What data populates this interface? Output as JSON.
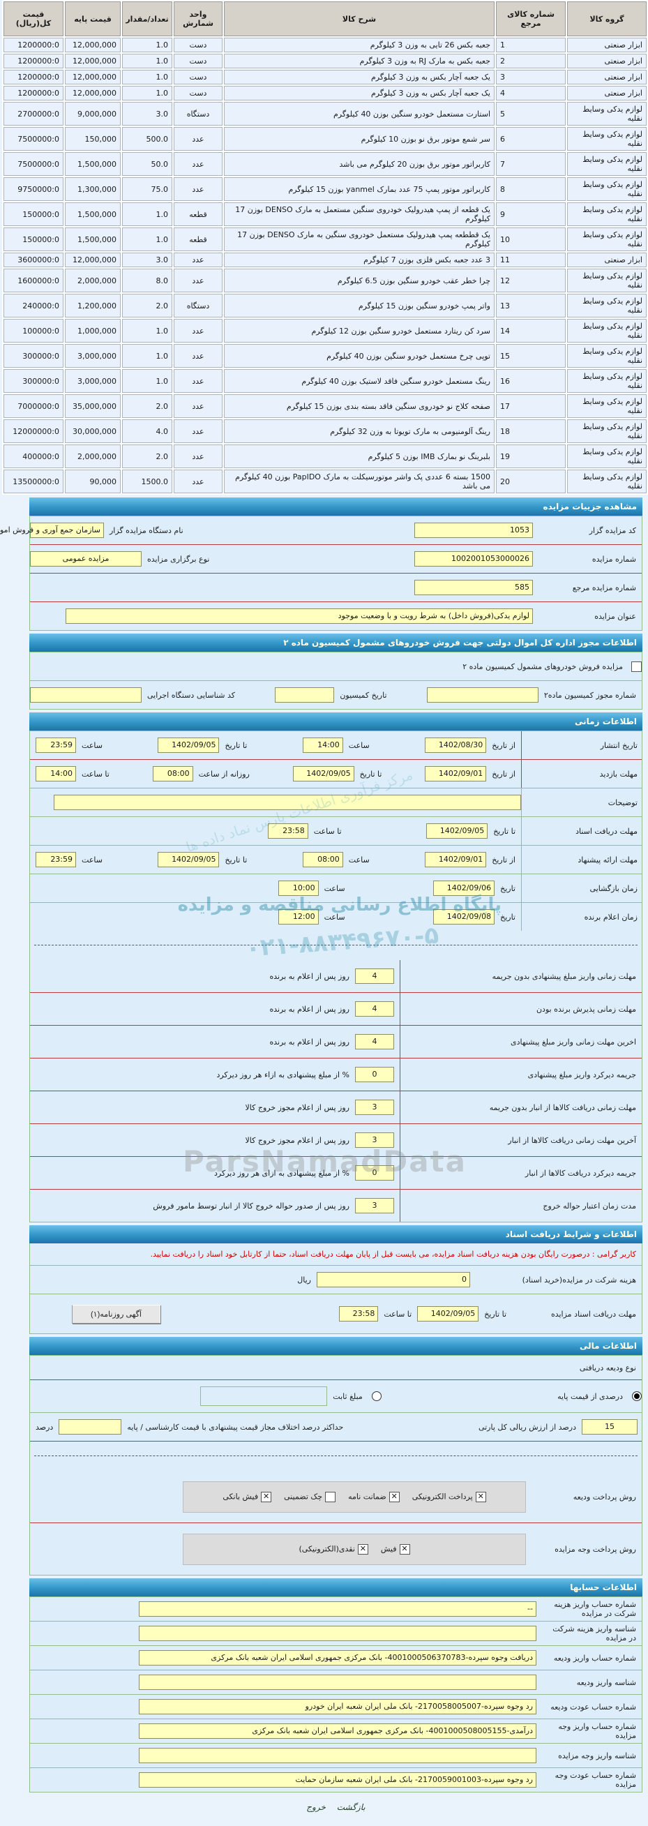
{
  "items_table": {
    "headers": [
      "گروه کالا",
      "شماره کالای مرجع",
      "شرح کالا",
      "واحد شمارش",
      "تعداد/مقدار",
      "قیمت پایه",
      "قیمت کل(ریال)"
    ],
    "rows": [
      {
        "group": "ابزار صنعتی",
        "ref": "1",
        "desc": "جعبه بکس 26 تایی به وزن 3 کیلوگرم",
        "unit": "دست",
        "qty": "1.0",
        "price": "12,000,000",
        "total": "1200000:0"
      },
      {
        "group": "ابزار صنعتی",
        "ref": "2",
        "desc": "جعبه بکس به مارک RJ به وزن 3 کیلوگرم",
        "unit": "دست",
        "qty": "1.0",
        "price": "12,000,000",
        "total": "1200000:0"
      },
      {
        "group": "ابزار صنعتی",
        "ref": "3",
        "desc": "یک جعبه آچار بکس به وزن 3 کیلوگرم",
        "unit": "دست",
        "qty": "1.0",
        "price": "12,000,000",
        "total": "1200000:0"
      },
      {
        "group": "ابزار صنعتی",
        "ref": "4",
        "desc": "یک جعبه آچار بکس به وزن 3 کیلوگرم",
        "unit": "دست",
        "qty": "1.0",
        "price": "12,000,000",
        "total": "1200000:0"
      },
      {
        "group": "لوازم یدکی وسایط نقلیه",
        "ref": "5",
        "desc": "استارت مستعمل خودرو سنگین بوزن 40 کیلوگرم",
        "unit": "دستگاه",
        "qty": "3.0",
        "price": "9,000,000",
        "total": "2700000:0"
      },
      {
        "group": "لوازم یدکی وسایط نقلیه",
        "ref": "6",
        "desc": "سر شمع موتور برق نو بوزن 10 کیلوگرم",
        "unit": "عدد",
        "qty": "500.0",
        "price": "150,000",
        "total": "7500000:0"
      },
      {
        "group": "لوازم یدکی وسایط نقلیه",
        "ref": "7",
        "desc": "کاربراتور موتور برق بوزن 20 کیلوگرم می باشد",
        "unit": "عدد",
        "qty": "50.0",
        "price": "1,500,000",
        "total": "7500000:0"
      },
      {
        "group": "لوازم یدکی وسایط نقلیه",
        "ref": "8",
        "desc": "کاربراتور موتور پمپ 75 عدد بمارک yanmel بوزن 15 کیلوگرم",
        "unit": "عدد",
        "qty": "75.0",
        "price": "1,300,000",
        "total": "9750000:0"
      },
      {
        "group": "لوازم یدکی وسایط نقلیه",
        "ref": "9",
        "desc": "یک قطعه از پمپ هیدرولیک خودروی سنگین مستعمل به مارک DENSO بوزن 17 کیلوگرم",
        "unit": "قطعه",
        "qty": "1.0",
        "price": "1,500,000",
        "total": "150000:0"
      },
      {
        "group": "لوازم یدکی وسایط نقلیه",
        "ref": "10",
        "desc": "یک قططعه پمپ هیدرولیک مستعمل خودروی سنگین به مارک DENSO بوزن 17 کیلوگرم",
        "unit": "قطعه",
        "qty": "1.0",
        "price": "1,500,000",
        "total": "150000:0"
      },
      {
        "group": "ابزار صنعتی",
        "ref": "11",
        "desc": "3 عدد جعبه بکس فلزی بوزن 7 کیلوگرم",
        "unit": "عدد",
        "qty": "3.0",
        "price": "12,000,000",
        "total": "3600000:0"
      },
      {
        "group": "لوازم یدکی وسایط نقلیه",
        "ref": "12",
        "desc": "چرا خطر عقب خودرو سنگین بوزن 6.5 کیلوگرم",
        "unit": "عدد",
        "qty": "8.0",
        "price": "2,000,000",
        "total": "1600000:0"
      },
      {
        "group": "لوازم یدکی وسایط نقلیه",
        "ref": "13",
        "desc": "واتر پمپ خودرو سنگین بوزن 15 کیلوگرم",
        "unit": "دستگاه",
        "qty": "2.0",
        "price": "1,200,000",
        "total": "240000:0"
      },
      {
        "group": "لوازم یدکی وسایط نقلیه",
        "ref": "14",
        "desc": "سرد کن ریتارد مستعمل خودرو سنگین بوزن 12 کیلوگرم",
        "unit": "عدد",
        "qty": "1.0",
        "price": "1,000,000",
        "total": "100000:0"
      },
      {
        "group": "لوازم یدکی وسایط نقلیه",
        "ref": "15",
        "desc": "توپی چرخ مستعمل خودرو سنگین بوزن 40 کیلوگرم",
        "unit": "عدد",
        "qty": "1.0",
        "price": "3,000,000",
        "total": "300000:0"
      },
      {
        "group": "لوازم یدکی وسایط نقلیه",
        "ref": "16",
        "desc": "رینگ مستعمل خودرو سنگین فاقد لاستیک بوزن 40 کیلوگرم",
        "unit": "عدد",
        "qty": "1.0",
        "price": "3,000,000",
        "total": "300000:0"
      },
      {
        "group": "لوازم یدکی وسایط نقلیه",
        "ref": "17",
        "desc": "صفحه کلاج نو خودروی سنگین فاقد بسته بندی بوزن 15 کیلوگرم",
        "unit": "عدد",
        "qty": "2.0",
        "price": "35,000,000",
        "total": "7000000:0"
      },
      {
        "group": "لوازم یدکی وسایط نقلیه",
        "ref": "18",
        "desc": "رینگ آلومنیومی به مارک تویوتا به وزن 32 کیلوگرم",
        "unit": "عدد",
        "qty": "4.0",
        "price": "30,000,000",
        "total": "12000000:0"
      },
      {
        "group": "لوازم یدکی وسایط نقلیه",
        "ref": "19",
        "desc": "بلبرینگ نو بمارک IMB بوزن 5 کیلوگرم",
        "unit": "عدد",
        "qty": "2.0",
        "price": "2,000,000",
        "total": "400000:0"
      },
      {
        "group": "لوازم یدکی وسایط نقلیه",
        "ref": "20",
        "desc": "1500 بسته 6 عددی پک واشر موتورسیکلت به مارک PapIDO بوزن 40 کیلوگرم می باشد",
        "unit": "عدد",
        "qty": "1500.0",
        "price": "90,000",
        "total": "13500000:0"
      }
    ]
  },
  "details": {
    "title": "مشاهده جزییات مزایده",
    "code_label": "کد مزایده گزار",
    "code_value": "1053",
    "org_label": "نام دستگاه مزایده گزار",
    "org_value": "سازمان جمع آوری و فروش امو",
    "number_label": "شماره مزایده",
    "number_value": "1002001053000026",
    "type_label": "نوع برگزاری مزایده",
    "type_value": "مزایده عمومی",
    "ref_label": "شماره مزایده مرجع",
    "ref_value": "585",
    "subject_label": "عنوان مزایده",
    "subject_value": "لوازم یدکی(فروش داخل) به شرط رویت و با وضعیت موجود"
  },
  "permit": {
    "title": "اطلاعات مجوز اداره کل اموال دولتی جهت فروش خودروهای مشمول کمیسیون ماده ۲",
    "checkbox_label": "مزایده فروش خودروهای مشمول کمیسیون ماده ۲",
    "checkbox_checked": false,
    "no_label": "شماره مجوز کمیسیون ماده۲",
    "date_label": "تاریخ کمیسیون",
    "org_code_label": "کد شناسایی دستگاه اجرایی"
  },
  "time": {
    "title": "اطلاعات زمانی",
    "publish_label": "تاریخ انتشار",
    "publish_from_label": "از تاریخ",
    "publish_from_date": "1402/08/30",
    "publish_from_time_label": "ساعت",
    "publish_from_time": "14:00",
    "publish_to_label": "تا تاریخ",
    "publish_to_date": "1402/09/05",
    "publish_to_time_label": "ساعت",
    "publish_to_time": "23:59",
    "visit_label": "مهلت بازدید",
    "visit_from_label": "از تاریخ",
    "visit_from_date": "1402/09/01",
    "visit_to_label": "تا تاریخ",
    "visit_to_date": "1402/09/05",
    "visit_daily_label": "روزانه از ساعت",
    "visit_daily_from": "08:00",
    "visit_daily_to_label": "تا ساعت",
    "visit_daily_to": "14:00",
    "notes_label": "توضیحات",
    "notes_value": "",
    "docs_label": "مهلت دریافت اسناد",
    "docs_to_label": "تا تاریخ",
    "docs_to_date": "1402/09/05",
    "docs_time_label": "تا ساعت",
    "docs_time": "23:58",
    "offer_label": "مهلت ارائه پیشنهاد",
    "offer_from_label": "از تاریخ",
    "offer_from_date": "1402/09/01",
    "offer_from_time_label": "ساعت",
    "offer_from_time": "08:00",
    "offer_to_label": "تا تاریخ",
    "offer_to_date": "1402/09/05",
    "offer_to_time_label": "ساعت",
    "offer_to_time": "23:59",
    "opening_label": "زمان بازگشایی",
    "opening_date_label": "تاریخ",
    "opening_date": "1402/09/06",
    "opening_time_label": "ساعت",
    "opening_time": "10:00",
    "winner_label": "زمان اعلام برنده",
    "winner_date_label": "تاریخ",
    "winner_date": "1402/09/08",
    "winner_time_label": "ساعت",
    "winner_time": "12:00",
    "deadlines": [
      {
        "label": "مهلت زمانی واریز مبلغ پیشنهادی بدون جریمه",
        "value": "4",
        "suffix": "روز پس از اعلام به برنده"
      },
      {
        "label": "مهلت زمانی پذیرش برنده بودن",
        "value": "4",
        "suffix": "روز پس از اعلام به برنده"
      },
      {
        "label": "اخرین مهلت زمانی واریز مبلغ پیشنهادی",
        "value": "4",
        "suffix": "روز پس از اعلام به برنده"
      },
      {
        "label": "جریمه دیرکرد واریز مبلغ پیشنهادی",
        "value": "0",
        "suffix": "% از مبلغ پیشنهادی به ازاء هر روز دیرکرد"
      },
      {
        "label": "مهلت زمانی دریافت کالاها از انبار بدون جریمه",
        "value": "3",
        "suffix": "روز پس از اعلام مجوز خروج کالا"
      },
      {
        "label": "آخرین مهلت زمانی دریافت کالاها از انبار",
        "value": "3",
        "suffix": "روز پس از اعلام مجوز خروج کالا"
      },
      {
        "label": "جریمه دیرکرد دریافت کالاها از انبار",
        "value": "0",
        "suffix": "% از مبلغ پیشنهادی به ازای هر روز دیرکرد"
      },
      {
        "label": "مدت زمان اعتبار حواله خروج",
        "value": "3",
        "suffix": "روز پس از صدور حواله خروج کالا از انبار توسط مامور فروش"
      }
    ]
  },
  "docs": {
    "title": "اطلاعات و شرایط دریافت اسناد",
    "notice": "کاربر گرامی : درصورت رایگان بودن هزینه دریافت اسناد مزایده، می بایست قبل از پایان مهلت دریافت اسناد، حتما از کارتابل خود اسناد را دریافت نمایید.",
    "fee_label": "هزینه شرکت در مزایده(خرید اسناد)",
    "fee_value": "0",
    "fee_unit": "ریال",
    "deadline_label": "مهلت دریافت اسناد مزایده",
    "deadline_date_label": "تا تاریخ",
    "deadline_date": "1402/09/05",
    "deadline_time_label": "تا ساعت",
    "deadline_time": "23:58",
    "newspaper_button": "آگهی روزنامه(۱)"
  },
  "financial": {
    "title": "اطلاعات مالی",
    "deposit_type_label": "نوع ودیعه دریافتی",
    "percent_option_label": "درصدی از قیمت پایه",
    "fixed_option_label": "مبلغ ثابت",
    "percent_selected": true,
    "percent_value": "15",
    "percent_suffix": "درصد از ارزش ریالی کل پارتی",
    "max_diff_label": "حداکثر درصد اختلاف مجاز قیمت پیشنهادی با قیمت کارشناسی / پایه",
    "max_diff_value": "",
    "max_diff_unit": "درصد",
    "deposit_pay_label": "روش پرداخت ودیعه",
    "deposit_pay_options": [
      {
        "label": "پرداخت الکترونیکی",
        "checked": true
      },
      {
        "label": "ضمانت نامه",
        "checked": true
      },
      {
        "label": "چک تضمینی",
        "checked": false
      },
      {
        "label": "فیش بانکی",
        "checked": true
      }
    ],
    "auction_pay_label": "روش پرداخت وجه مزایده",
    "auction_pay_options": [
      {
        "label": "فیش",
        "checked": true
      },
      {
        "label": "نقدی(الکترونیکی)",
        "checked": true
      }
    ]
  },
  "accounts": {
    "title": "اطلاعات حسابها",
    "rows": [
      {
        "label": "شماره حساب واریز هزینه شرکت در مزایده",
        "value": "--"
      },
      {
        "label": "شناسه واریز هزینه شرکت در مزایده",
        "value": ""
      },
      {
        "label": "شماره حساب واریز ودیعه",
        "value": "دریافت وجوه سپرده-4001000506370783- بانک مرکزی جمهوری اسلامی ایران شعبه بانک مرکزی"
      },
      {
        "label": "شناسه واریز ودیعه",
        "value": ""
      },
      {
        "label": "شماره حساب عودت ودیعه",
        "value": "رد وجوه سپرده-2170058005007- بانک ملی ایران شعبه ایران خودرو"
      },
      {
        "label": "شماره حساب واریز وجه مزایده",
        "value": "درآمدی-4001000508005155- بانک مرکزی جمهوری اسلامی ایران شعبه بانک مرکزی"
      },
      {
        "label": "شناسه واریز وجه مزایده",
        "value": ""
      },
      {
        "label": "شماره حساب عودت وجه مزایده",
        "value": "رد وجوه سپرده-2170059001003- بانک ملی ایران شعبه سازمان حمایت"
      }
    ]
  },
  "footer": {
    "back": "بازگشت",
    "exit": "خروج"
  },
  "watermark": {
    "brand": "ParsNamadData",
    "fa_line": "پایگاه اطلاع رسانی مناقصه و مزایده",
    "phone": "۰۲۱-۸۸۳۴۹۶۷۰-۵",
    "center": "مرکز فرآوری اطلاعات پارس نماد داده ها"
  }
}
